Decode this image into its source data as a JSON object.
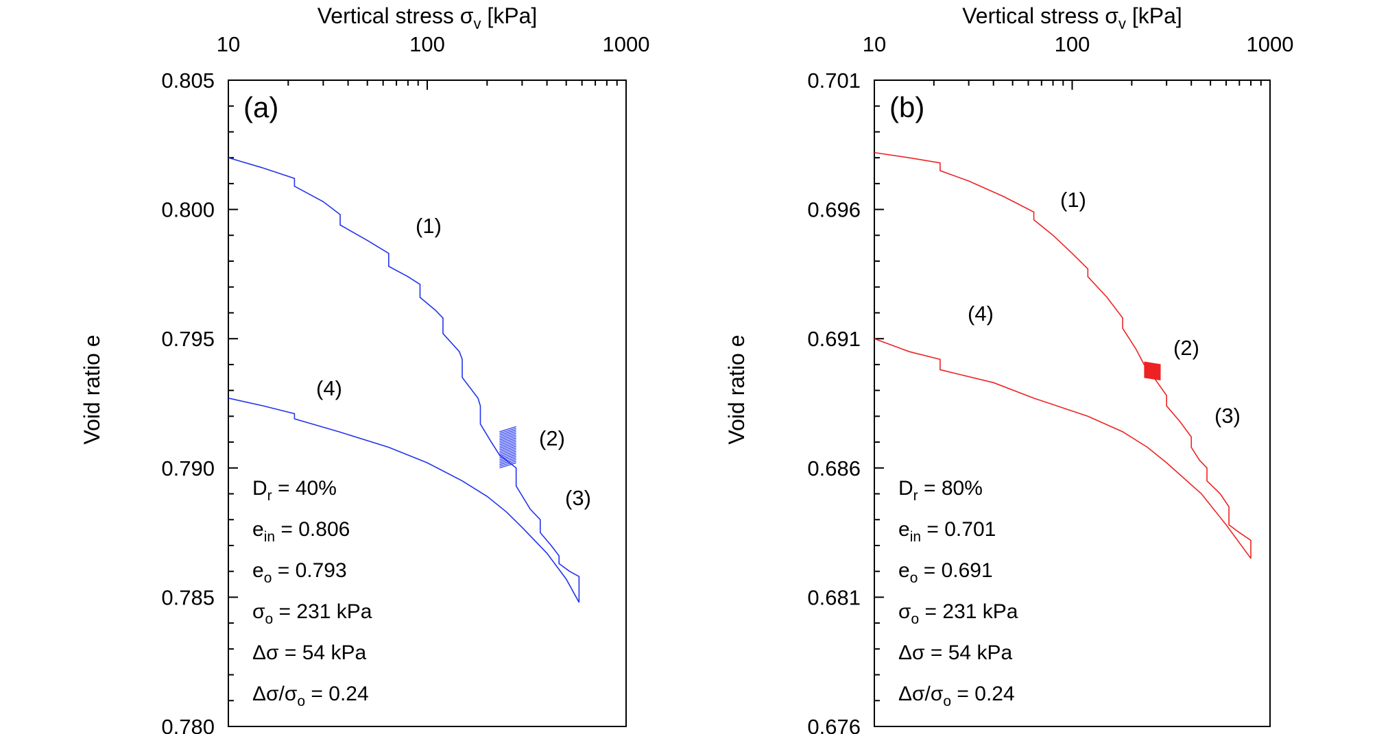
{
  "chart_data": [
    {
      "panel_label": "(a)",
      "type": "line",
      "xlabel_main": "Vertical stress σ",
      "xlabel_sub": "v",
      "xlabel_unit": " [kPa]",
      "ylabel": "Void ratio e",
      "x_scale": "log",
      "xlim": [
        10,
        1000
      ],
      "ylim": [
        0.78,
        0.805
      ],
      "x_ticks": [
        10,
        100,
        1000
      ],
      "x_tick_labels": [
        "10",
        "100",
        "1000"
      ],
      "y_ticks": [
        0.78,
        0.785,
        0.79,
        0.795,
        0.8,
        0.805
      ],
      "y_tick_labels": [
        "0.780",
        "0.785",
        "0.790",
        "0.795",
        "0.800",
        "0.805"
      ],
      "color": "#2233ee",
      "series": [
        {
          "x": [
            10,
            15,
            21.5,
            21.5,
            30,
            36.5,
            36.5,
            50,
            64,
            64,
            80,
            92,
            92,
            110,
            120,
            120,
            145,
            150,
            150,
            180,
            185,
            185,
            210,
            231,
            280,
            280,
            330,
            370,
            370,
            420,
            460,
            460,
            520,
            580,
            580
          ],
          "y": [
            0.802,
            0.8016,
            0.8012,
            0.8009,
            0.8003,
            0.7998,
            0.7994,
            0.7988,
            0.7983,
            0.7978,
            0.7974,
            0.7971,
            0.7966,
            0.7961,
            0.7958,
            0.7952,
            0.7945,
            0.7942,
            0.7935,
            0.7927,
            0.7924,
            0.7917,
            0.791,
            0.7905,
            0.79,
            0.7893,
            0.7884,
            0.788,
            0.7875,
            0.787,
            0.7866,
            0.7863,
            0.786,
            0.7858,
            0.7848
          ]
        },
        {
          "x": [
            231,
            280
          ],
          "y_min": [
            0.79,
            0.7902
          ],
          "y_max": [
            0.7914,
            0.7916
          ]
        },
        {
          "x": [
            580,
            500,
            400,
            300,
            250,
            200,
            150,
            100,
            64,
            36,
            21.5,
            21.5,
            15,
            10
          ],
          "y": [
            0.7848,
            0.7857,
            0.7867,
            0.7877,
            0.7883,
            0.7889,
            0.7895,
            0.7902,
            0.7908,
            0.7914,
            0.7919,
            0.7921,
            0.7924,
            0.7927
          ]
        }
      ],
      "curve_labels": [
        "(1)",
        "(2)",
        "(3)",
        "(4)"
      ],
      "annotations": [
        {
          "main": "D",
          "sub": "r",
          "rest": " = 40%"
        },
        {
          "main": "e",
          "sub": "in",
          "rest": " = 0.806"
        },
        {
          "main": "e",
          "sub": "o",
          "rest": " = 0.793"
        },
        {
          "main": "σ",
          "sub": "o",
          "rest": " = 231 kPa"
        },
        {
          "main": "Δσ = 54 kPa",
          "sub": "",
          "rest": ""
        },
        {
          "main": "Δσ/σ",
          "sub": "o",
          "rest": " = 0.24"
        }
      ]
    },
    {
      "panel_label": "(b)",
      "type": "line",
      "xlabel_main": "Vertical stress σ",
      "xlabel_sub": "v",
      "xlabel_unit": " [kPa]",
      "ylabel": "Void ratio e",
      "x_scale": "log",
      "xlim": [
        10,
        1000
      ],
      "ylim": [
        0.676,
        0.701
      ],
      "x_ticks": [
        10,
        100,
        1000
      ],
      "x_tick_labels": [
        "10",
        "100",
        "1000"
      ],
      "y_ticks": [
        0.676,
        0.681,
        0.686,
        0.691,
        0.696,
        0.701
      ],
      "y_tick_labels": [
        "0.676",
        "0.681",
        "0.686",
        "0.691",
        "0.696",
        "0.701"
      ],
      "color": "#ee2222",
      "series": [
        {
          "x": [
            10,
            15,
            21.5,
            21.5,
            30,
            45,
            64,
            64,
            80,
            100,
            120,
            120,
            150,
            180,
            180,
            210,
            231,
            270,
            300,
            300,
            350,
            400,
            400,
            440,
            480,
            480,
            560,
            620,
            620,
            700,
            800,
            800
          ],
          "y": [
            0.6982,
            0.698,
            0.6978,
            0.6975,
            0.6971,
            0.6965,
            0.6959,
            0.6956,
            0.695,
            0.6943,
            0.6937,
            0.6934,
            0.6926,
            0.6918,
            0.6914,
            0.6906,
            0.69,
            0.6893,
            0.6888,
            0.6884,
            0.6878,
            0.6872,
            0.6868,
            0.6863,
            0.686,
            0.6855,
            0.685,
            0.6845,
            0.6838,
            0.6835,
            0.6832,
            0.6825
          ]
        },
        {
          "x": [
            231,
            280
          ],
          "y_min": [
            0.6895,
            0.6894
          ],
          "y_max": [
            0.6901,
            0.69
          ]
        },
        {
          "x": [
            800,
            600,
            450,
            300,
            240,
            180,
            120,
            64,
            40,
            21.5,
            21.5,
            15,
            10
          ],
          "y": [
            0.6825,
            0.6838,
            0.685,
            0.6862,
            0.6868,
            0.6874,
            0.688,
            0.6887,
            0.6893,
            0.6898,
            0.6902,
            0.6905,
            0.691
          ]
        }
      ],
      "curve_labels": [
        "(1)",
        "(2)",
        "(3)",
        "(4)"
      ],
      "annotations": [
        {
          "main": "D",
          "sub": "r",
          "rest": " = 80%"
        },
        {
          "main": "e",
          "sub": "in",
          "rest": " = 0.701"
        },
        {
          "main": "e",
          "sub": "o",
          "rest": " = 0.691"
        },
        {
          "main": "σ",
          "sub": "o",
          "rest": " = 231 kPa"
        },
        {
          "main": "Δσ = 54 kPa",
          "sub": "",
          "rest": ""
        },
        {
          "main": "Δσ/σ",
          "sub": "o",
          "rest": " = 0.24"
        }
      ]
    }
  ]
}
